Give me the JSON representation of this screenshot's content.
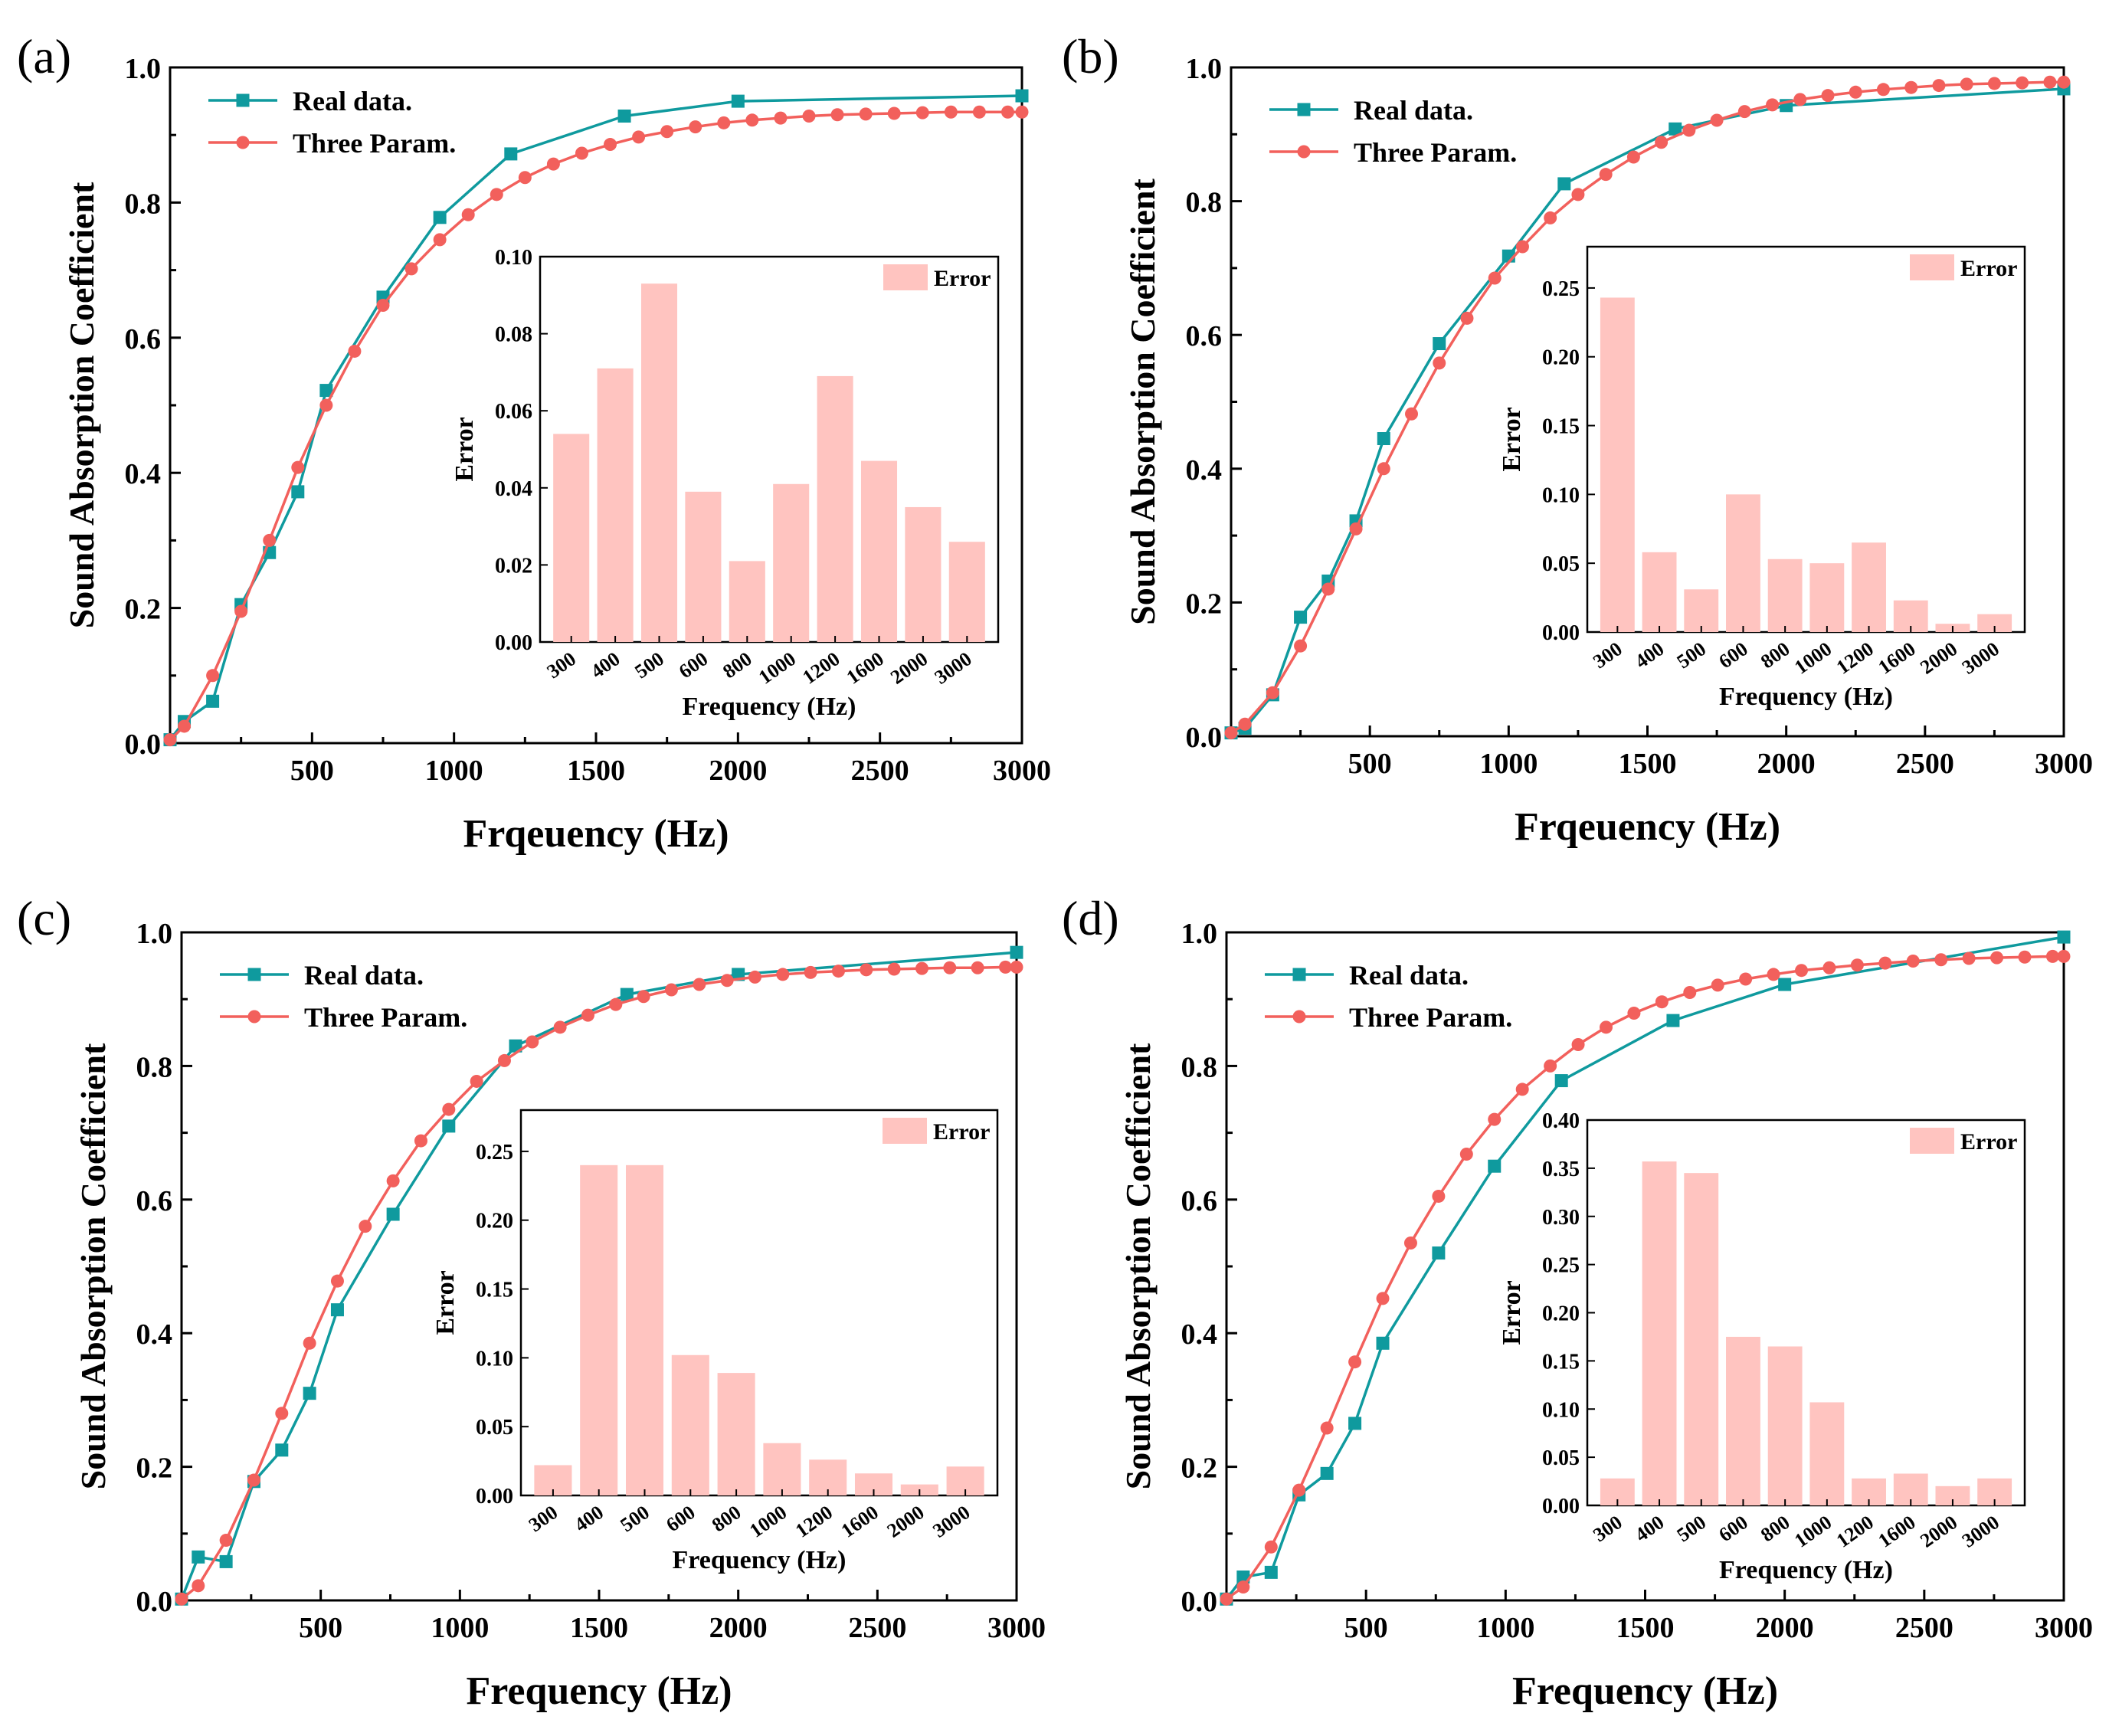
{
  "colors": {
    "real": "#0f9a9e",
    "three": "#f2605c",
    "bar": "#ffc4c0",
    "axis": "#000000"
  },
  "chart_data": [
    {
      "panel_label": "(a)",
      "type": "line",
      "xlabel": "Frqeuency (Hz)",
      "ylabel": "Sound Absorption Coefficient",
      "xlim": [
        0,
        3000
      ],
      "ylim": [
        0,
        1.0
      ],
      "xticks": [
        500,
        1000,
        1500,
        2000,
        2500,
        3000
      ],
      "xtick_labels": [
        "500",
        "1000",
        "1500",
        "2000",
        "2500",
        "3000"
      ],
      "yticks": [
        0,
        0.2,
        0.4,
        0.6,
        0.8,
        1.0
      ],
      "ytick_labels": [
        "0.0",
        "0.2",
        "0.4",
        "0.6",
        "0.8",
        "1.0"
      ],
      "legend": [
        "Real data.",
        "Three Param."
      ],
      "legend_position": "top-left",
      "series": [
        {
          "name": "Real data.",
          "x": [
            0,
            50,
            150,
            250,
            350,
            450,
            550,
            750,
            950,
            1200,
            1600,
            2000,
            3000
          ],
          "y": [
            0.005,
            0.032,
            0.062,
            0.205,
            0.282,
            0.372,
            0.522,
            0.66,
            0.778,
            0.872,
            0.928,
            0.95,
            0.958
          ]
        },
        {
          "name": "Three Param.",
          "x": [
            0,
            50,
            150,
            250,
            350,
            450,
            550,
            650,
            750,
            850,
            950,
            1050,
            1150,
            1250,
            1350,
            1450,
            1550,
            1650,
            1750,
            1850,
            1950,
            2050,
            2150,
            2250,
            2350,
            2450,
            2550,
            2650,
            2750,
            2850,
            2950,
            3000
          ],
          "y": [
            0.005,
            0.025,
            0.1,
            0.195,
            0.3,
            0.408,
            0.5,
            0.58,
            0.648,
            0.702,
            0.745,
            0.782,
            0.812,
            0.837,
            0.857,
            0.873,
            0.886,
            0.897,
            0.905,
            0.912,
            0.918,
            0.922,
            0.925,
            0.928,
            0.93,
            0.931,
            0.932,
            0.933,
            0.934,
            0.934,
            0.934,
            0.934
          ]
        }
      ],
      "inset": {
        "type": "bar",
        "categories": [
          "300",
          "400",
          "500",
          "600",
          "800",
          "1000",
          "1200",
          "1600",
          "2000",
          "3000"
        ],
        "values": [
          0.054,
          0.071,
          0.093,
          0.039,
          0.021,
          0.041,
          0.069,
          0.047,
          0.035,
          0.026
        ],
        "ylim": [
          0,
          0.1
        ],
        "yticks": [
          0,
          0.02,
          0.04,
          0.06,
          0.08,
          0.1
        ],
        "ytick_labels": [
          "0.00",
          "0.02",
          "0.04",
          "0.06",
          "0.08",
          "0.10"
        ],
        "xlabel": "Frequency (Hz)",
        "ylabel": "Error",
        "legend": "Error"
      }
    },
    {
      "panel_label": "(b)",
      "type": "line",
      "xlabel": "Frqeuency (Hz)",
      "ylabel": "Sound Absorption Coefficient",
      "xlim": [
        0,
        3000
      ],
      "ylim": [
        0,
        1.0
      ],
      "xticks": [
        500,
        1000,
        1500,
        2000,
        2500,
        3000
      ],
      "xtick_labels": [
        "500",
        "1000",
        "1500",
        "2000",
        "2500",
        "3000"
      ],
      "yticks": [
        0,
        0.2,
        0.4,
        0.6,
        0.8,
        1.0
      ],
      "ytick_labels": [
        "0.0",
        "0.2",
        "0.4",
        "0.6",
        "0.8",
        "1.0"
      ],
      "legend": [
        "Real data.",
        "Three Param."
      ],
      "legend_position": "top-left",
      "series": [
        {
          "name": "Real data.",
          "x": [
            0,
            50,
            150,
            250,
            350,
            450,
            550,
            750,
            1000,
            1200,
            1600,
            2000,
            3000
          ],
          "y": [
            0.005,
            0.012,
            0.062,
            0.178,
            0.232,
            0.322,
            0.445,
            0.587,
            0.718,
            0.826,
            0.908,
            0.943,
            0.968
          ]
        },
        {
          "name": "Three Param.",
          "x": [
            0,
            50,
            150,
            250,
            350,
            450,
            550,
            650,
            750,
            850,
            950,
            1050,
            1150,
            1250,
            1350,
            1450,
            1550,
            1650,
            1750,
            1850,
            1950,
            2050,
            2150,
            2250,
            2350,
            2450,
            2550,
            2650,
            2750,
            2850,
            2950,
            3000
          ],
          "y": [
            0.005,
            0.018,
            0.065,
            0.135,
            0.22,
            0.31,
            0.4,
            0.482,
            0.558,
            0.625,
            0.685,
            0.732,
            0.775,
            0.81,
            0.84,
            0.866,
            0.888,
            0.906,
            0.921,
            0.934,
            0.944,
            0.952,
            0.958,
            0.963,
            0.967,
            0.97,
            0.973,
            0.975,
            0.976,
            0.977,
            0.978,
            0.978
          ]
        }
      ],
      "inset": {
        "type": "bar",
        "categories": [
          "300",
          "400",
          "500",
          "600",
          "800",
          "1000",
          "1200",
          "1600",
          "2000",
          "3000"
        ],
        "values": [
          0.243,
          0.058,
          0.031,
          0.1,
          0.053,
          0.05,
          0.065,
          0.023,
          0.006,
          0.013
        ],
        "ylim": [
          0,
          0.28
        ],
        "yticks": [
          0,
          0.05,
          0.1,
          0.15,
          0.2,
          0.25
        ],
        "ytick_labels": [
          "0.00",
          "0.05",
          "0.10",
          "0.15",
          "0.20",
          "0.25"
        ],
        "xlabel": "Frequency (Hz)",
        "ylabel": "Error",
        "legend": "Error"
      }
    },
    {
      "panel_label": "(c)",
      "type": "line",
      "xlabel": "Frequency (Hz)",
      "ylabel": "Sound Absorption Coefficient",
      "xlim": [
        0,
        3000
      ],
      "ylim": [
        0,
        1.0
      ],
      "xticks": [
        500,
        1000,
        1500,
        2000,
        2500,
        3000
      ],
      "xtick_labels": [
        "500",
        "1000",
        "1500",
        "2000",
        "2500",
        "3000"
      ],
      "yticks": [
        0,
        0.2,
        0.4,
        0.6,
        0.8,
        1.0
      ],
      "ytick_labels": [
        "0.0",
        "0.2",
        "0.4",
        "0.6",
        "0.8",
        "1.0"
      ],
      "legend": [
        "Real data.",
        "Three Param."
      ],
      "legend_position": "top-left",
      "series": [
        {
          "name": "Real data.",
          "x": [
            0,
            60,
            160,
            260,
            360,
            460,
            560,
            760,
            960,
            1200,
            1600,
            2000,
            3000
          ],
          "y": [
            0.002,
            0.065,
            0.058,
            0.178,
            0.225,
            0.31,
            0.435,
            0.578,
            0.71,
            0.83,
            0.907,
            0.937,
            0.97
          ]
        },
        {
          "name": "Three Param.",
          "x": [
            0,
            60,
            160,
            260,
            360,
            460,
            560,
            660,
            760,
            860,
            960,
            1060,
            1160,
            1260,
            1360,
            1460,
            1560,
            1660,
            1760,
            1860,
            1960,
            2060,
            2160,
            2260,
            2360,
            2460,
            2560,
            2660,
            2760,
            2860,
            2960,
            3000
          ],
          "y": [
            0.002,
            0.022,
            0.09,
            0.18,
            0.28,
            0.385,
            0.478,
            0.56,
            0.628,
            0.688,
            0.735,
            0.777,
            0.808,
            0.836,
            0.858,
            0.876,
            0.892,
            0.904,
            0.914,
            0.922,
            0.928,
            0.933,
            0.937,
            0.94,
            0.942,
            0.944,
            0.945,
            0.946,
            0.947,
            0.947,
            0.948,
            0.948
          ]
        }
      ],
      "inset": {
        "type": "bar",
        "categories": [
          "300",
          "400",
          "500",
          "600",
          "800",
          "1000",
          "1200",
          "1600",
          "2000",
          "3000"
        ],
        "values": [
          0.022,
          0.24,
          0.24,
          0.102,
          0.089,
          0.038,
          0.026,
          0.016,
          0.008,
          0.021
        ],
        "ylim": [
          0,
          0.28
        ],
        "yticks": [
          0,
          0.05,
          0.1,
          0.15,
          0.2,
          0.25
        ],
        "ytick_labels": [
          "0.00",
          "0.05",
          "0.10",
          "0.15",
          "0.20",
          "0.25"
        ],
        "xlabel": "Frequency (Hz)",
        "ylabel": "Error",
        "legend": "Error"
      }
    },
    {
      "panel_label": "(d)",
      "type": "line",
      "xlabel": "Frequency (Hz)",
      "ylabel": "Sound Absorption Coefficient",
      "xlim": [
        0,
        3000
      ],
      "ylim": [
        0,
        1.0
      ],
      "xticks": [
        500,
        1000,
        1500,
        2000,
        2500,
        3000
      ],
      "xtick_labels": [
        "500",
        "1000",
        "1500",
        "2000",
        "2500",
        "3000"
      ],
      "yticks": [
        0,
        0.2,
        0.4,
        0.6,
        0.8,
        1.0
      ],
      "ytick_labels": [
        "0.0",
        "0.2",
        "0.4",
        "0.6",
        "0.8",
        "1.0"
      ],
      "legend": [
        "Real data.",
        "Three Param."
      ],
      "legend_position": "top-left",
      "series": [
        {
          "name": "Real data.",
          "x": [
            0,
            60,
            160,
            260,
            360,
            460,
            560,
            760,
            960,
            1200,
            1600,
            2000,
            3000
          ],
          "y": [
            0.002,
            0.035,
            0.042,
            0.158,
            0.19,
            0.265,
            0.385,
            0.52,
            0.65,
            0.778,
            0.868,
            0.922,
            0.993
          ]
        },
        {
          "name": "Three Param.",
          "x": [
            0,
            60,
            160,
            260,
            360,
            460,
            560,
            660,
            760,
            860,
            960,
            1060,
            1160,
            1260,
            1360,
            1460,
            1560,
            1660,
            1760,
            1860,
            1960,
            2060,
            2160,
            2260,
            2360,
            2460,
            2560,
            2660,
            2760,
            2860,
            2960,
            3000
          ],
          "y": [
            0.002,
            0.02,
            0.08,
            0.165,
            0.258,
            0.357,
            0.452,
            0.535,
            0.605,
            0.668,
            0.72,
            0.765,
            0.8,
            0.832,
            0.858,
            0.879,
            0.896,
            0.91,
            0.921,
            0.93,
            0.937,
            0.943,
            0.947,
            0.951,
            0.954,
            0.957,
            0.959,
            0.961,
            0.962,
            0.963,
            0.964,
            0.964
          ]
        }
      ],
      "inset": {
        "type": "bar",
        "categories": [
          "300",
          "400",
          "500",
          "600",
          "800",
          "1000",
          "1200",
          "1600",
          "2000",
          "3000"
        ],
        "values": [
          0.028,
          0.357,
          0.345,
          0.175,
          0.165,
          0.107,
          0.028,
          0.033,
          0.02,
          0.028
        ],
        "ylim": [
          0,
          0.4
        ],
        "yticks": [
          0,
          0.05,
          0.1,
          0.15,
          0.2,
          0.25,
          0.3,
          0.35,
          0.4
        ],
        "ytick_labels": [
          "0.00",
          "0.05",
          "0.10",
          "0.15",
          "0.20",
          "0.25",
          "0.30",
          "0.35",
          "0.40"
        ],
        "xlabel": "Frequency (Hz)",
        "ylabel": "Error",
        "legend": "Error"
      }
    }
  ]
}
